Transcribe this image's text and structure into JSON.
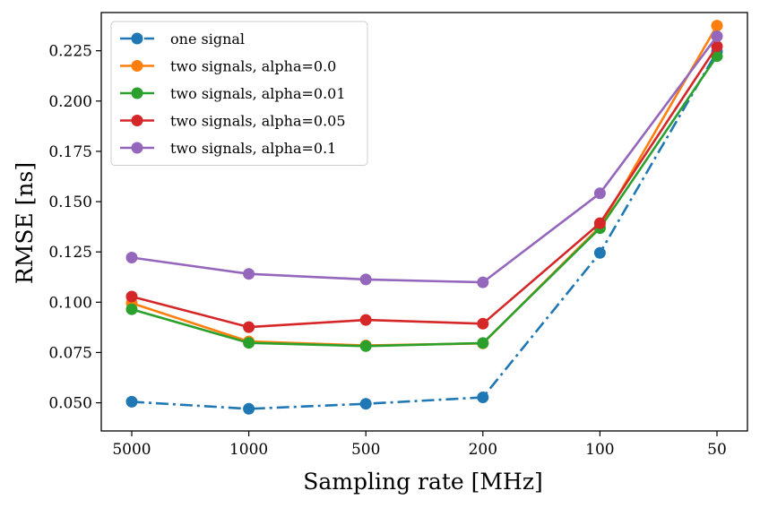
{
  "chart_data": {
    "type": "line",
    "title": "",
    "xlabel": "Sampling rate [MHz]",
    "ylabel": "RMSE [ns]",
    "categories": [
      "5000",
      "1000",
      "500",
      "200",
      "100",
      "50"
    ],
    "ylim": [
      0.036,
      0.244
    ],
    "yticks": [
      0.05,
      0.075,
      0.1,
      0.125,
      0.15,
      0.175,
      0.2,
      0.225
    ],
    "ytick_labels": [
      "0.050",
      "0.075",
      "0.100",
      "0.125",
      "0.150",
      "0.175",
      "0.200",
      "0.225"
    ],
    "grid": false,
    "legend_position": "top-left",
    "series": [
      {
        "name": "one signal",
        "color": "#1f77b4",
        "dash": "dashdot",
        "values": [
          0.0505,
          0.047,
          0.0495,
          0.0527,
          0.1245,
          0.2245
        ]
      },
      {
        "name": "two signals, alpha=0.0",
        "color": "#ff7f0e",
        "dash": "solid",
        "values": [
          0.0995,
          0.0805,
          0.0785,
          0.0795,
          0.1375,
          0.2375
        ]
      },
      {
        "name": "two signals, alpha=0.01",
        "color": "#2ca02c",
        "dash": "solid",
        "values": [
          0.0965,
          0.0798,
          0.0782,
          0.0797,
          0.1368,
          0.2223
        ]
      },
      {
        "name": "two signals, alpha=0.05",
        "color": "#d62728",
        "dash": "solid",
        "values": [
          0.1028,
          0.0876,
          0.0912,
          0.0893,
          0.1393,
          0.2272
        ]
      },
      {
        "name": "two signals, alpha=0.1",
        "color": "#9467bd",
        "dash": "solid",
        "values": [
          0.1222,
          0.1141,
          0.1113,
          0.1099,
          0.1541,
          0.2322
        ]
      }
    ]
  }
}
